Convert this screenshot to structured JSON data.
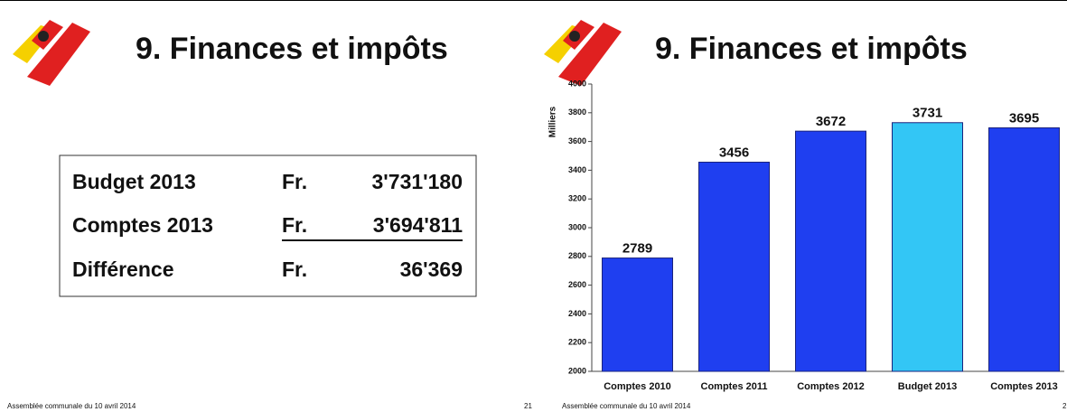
{
  "slides": [
    {
      "title": "9. Finances et impôts",
      "table": {
        "rows": [
          [
            "Budget 2013",
            "Fr.",
            "3'731'180"
          ],
          [
            "Comptes 2013",
            "Fr.",
            "3'694'811"
          ],
          [
            "Différence",
            "Fr.",
            "36'369"
          ]
        ]
      },
      "footer": "Assemblée communale du 10 avril 2014",
      "page": "21"
    },
    {
      "title": "9. Finances et impôts",
      "chart": {
        "type": "bar",
        "ylabel": "Milliers",
        "categories": [
          "Comptes 2010",
          "Comptes 2011",
          "Comptes 2012",
          "Budget 2013",
          "Comptes 2013"
        ],
        "values": [
          2789,
          3456,
          3672,
          3731,
          3695
        ],
        "colors": [
          "#1f3ff0",
          "#1f3ff0",
          "#1f3ff0",
          "#33c6f5",
          "#1f3ff0"
        ],
        "ylim": [
          2000,
          4000
        ],
        "yticks": [
          2000,
          2200,
          2400,
          2600,
          2800,
          3000,
          3200,
          3400,
          3600,
          3800,
          4000
        ]
      },
      "footer": "Assemblée communale du 10 avril 2014",
      "page": "2"
    }
  ]
}
